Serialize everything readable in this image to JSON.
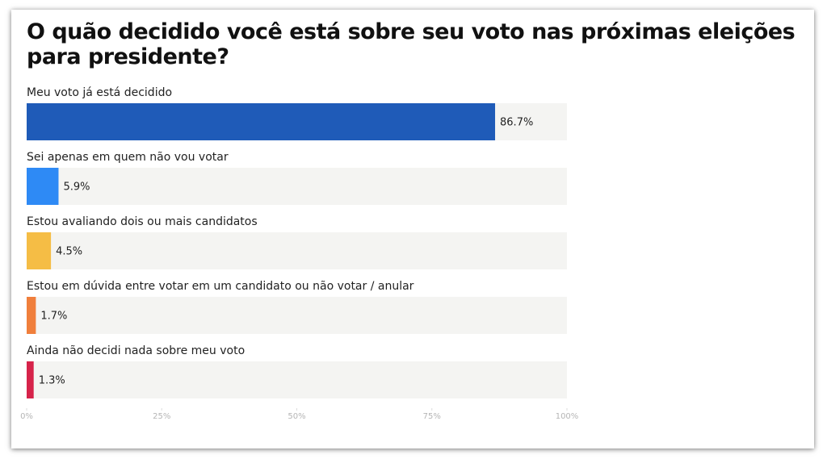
{
  "chart_data": {
    "type": "bar",
    "title": "O quão decidido você está sobre seu voto nas próximas eleições para presidente?",
    "categories": [
      "Meu voto já está decidido",
      "Sei apenas em quem não vou votar",
      "Estou avaliando dois ou mais candidatos",
      "Estou em dúvida entre votar em um candidato ou não votar / anular",
      "Ainda não decidi nada sobre meu voto"
    ],
    "values": [
      86.7,
      5.9,
      4.5,
      1.7,
      1.3
    ],
    "value_labels": [
      "86.7%",
      "5.9%",
      "4.5%",
      "1.7%",
      "1.3%"
    ],
    "colors": [
      "#1f5bb8",
      "#2e8af5",
      "#f5bd45",
      "#f07f3c",
      "#d6234a"
    ],
    "xlim": [
      0,
      100
    ],
    "xticks": [
      {
        "value": 0,
        "label": "0%"
      },
      {
        "value": 25,
        "label": "25%"
      },
      {
        "value": 50,
        "label": "50%"
      },
      {
        "value": 75,
        "label": "75%"
      },
      {
        "value": 100,
        "label": "100%"
      }
    ]
  }
}
